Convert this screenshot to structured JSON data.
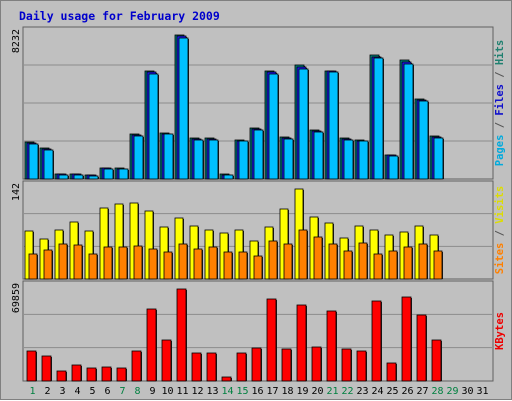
{
  "title": "Daily usage for February 2009",
  "chart_data": [
    {
      "type": "bar",
      "panel": "pages-files-hits",
      "max_label": "8232",
      "axis_label": {
        "parts": [
          "Pages",
          " / ",
          "Files",
          " / ",
          "Hits"
        ],
        "colors": [
          "#00aadd",
          "#555555",
          "#1010cc",
          "#555555",
          "#208070"
        ]
      },
      "ylim": [
        0,
        8232
      ],
      "categories": [
        "1",
        "2",
        "3",
        "4",
        "5",
        "6",
        "7",
        "8",
        "9",
        "10",
        "11",
        "12",
        "13",
        "14",
        "15",
        "16",
        "17",
        "18",
        "19",
        "20",
        "21",
        "22",
        "23",
        "24",
        "25",
        "26",
        "27",
        "28",
        "29",
        "30",
        "31"
      ],
      "series": [
        {
          "name": "Hits",
          "color": "#008080",
          "values": [
            2100,
            1750,
            280,
            280,
            230,
            650,
            620,
            2550,
            6200,
            2650,
            8232,
            2350,
            2350,
            270,
            2250,
            2900,
            6200,
            2400,
            6500,
            2800,
            6200,
            2350,
            2250,
            7100,
            1400,
            6800,
            4600,
            2450,
            null,
            null,
            null
          ]
        },
        {
          "name": "Files",
          "color": "#1a1aff",
          "values": [
            2050,
            1700,
            260,
            260,
            210,
            630,
            600,
            2500,
            6100,
            2600,
            8150,
            2300,
            2300,
            250,
            2200,
            2850,
            6100,
            2350,
            6400,
            2750,
            6150,
            2300,
            2200,
            7000,
            1350,
            6700,
            4500,
            2400,
            null,
            null,
            null
          ]
        },
        {
          "name": "Pages",
          "color": "#00c0ff",
          "values": [
            2000,
            1650,
            240,
            240,
            190,
            600,
            580,
            2450,
            6000,
            2550,
            8050,
            2250,
            2250,
            230,
            2150,
            2800,
            6000,
            2300,
            6300,
            2700,
            6100,
            2250,
            2150,
            6900,
            1300,
            6600,
            4450,
            2350,
            null,
            null,
            null
          ]
        }
      ]
    },
    {
      "type": "bar",
      "panel": "visits-sites",
      "max_label": "142",
      "axis_label": {
        "parts": [
          "Sites",
          " / ",
          "Visits"
        ],
        "colors": [
          "#ff8000",
          "#555555",
          "#dddd00"
        ]
      },
      "ylim": [
        0,
        142
      ],
      "categories": [
        "1",
        "2",
        "3",
        "4",
        "5",
        "6",
        "7",
        "8",
        "9",
        "10",
        "11",
        "12",
        "13",
        "14",
        "15",
        "16",
        "17",
        "18",
        "19",
        "20",
        "21",
        "22",
        "23",
        "24",
        "25",
        "26",
        "27",
        "28",
        "29",
        "30",
        "31"
      ],
      "series": [
        {
          "name": "Visits",
          "color": "#ffff00",
          "values": [
            75,
            63,
            77,
            90,
            76,
            112,
            118,
            120,
            108,
            82,
            96,
            84,
            77,
            72,
            77,
            60,
            82,
            110,
            142,
            98,
            88,
            64,
            83,
            78,
            70,
            74,
            84,
            70,
            null,
            null,
            null
          ]
        },
        {
          "name": "Sites",
          "color": "#ff8000",
          "values": [
            40,
            45,
            55,
            53,
            40,
            50,
            50,
            52,
            48,
            42,
            55,
            48,
            50,
            42,
            42,
            36,
            60,
            55,
            78,
            66,
            56,
            44,
            57,
            40,
            44,
            50,
            56,
            44,
            null,
            null,
            null
          ]
        }
      ]
    },
    {
      "type": "bar",
      "panel": "kbytes",
      "max_label": "69859",
      "axis_label": {
        "parts": [
          "KBytes"
        ],
        "colors": [
          "#ee0000"
        ]
      },
      "ylim": [
        0,
        69859
      ],
      "categories": [
        "1",
        "2",
        "3",
        "4",
        "5",
        "6",
        "7",
        "8",
        "9",
        "10",
        "11",
        "12",
        "13",
        "14",
        "15",
        "16",
        "17",
        "18",
        "19",
        "20",
        "21",
        "22",
        "23",
        "24",
        "25",
        "26",
        "27",
        "28",
        "29",
        "30",
        "31"
      ],
      "series": [
        {
          "name": "KBytes",
          "color": "#ff0000",
          "values": [
            23000,
            19000,
            7600,
            12000,
            10000,
            10500,
            10000,
            23000,
            55000,
            31000,
            69859,
            21500,
            21500,
            3000,
            21000,
            25000,
            62000,
            24000,
            58000,
            26000,
            53500,
            24500,
            22500,
            61000,
            13500,
            64000,
            50000,
            31000,
            null,
            null,
            null
          ]
        }
      ]
    }
  ],
  "x_labels": {
    "days": [
      "1",
      "2",
      "3",
      "4",
      "5",
      "6",
      "7",
      "8",
      "9",
      "10",
      "11",
      "12",
      "13",
      "14",
      "15",
      "16",
      "17",
      "18",
      "19",
      "20",
      "21",
      "22",
      "23",
      "24",
      "25",
      "26",
      "27",
      "28",
      "29",
      "30",
      "31"
    ],
    "weekend_color": "#008040",
    "weekday_color": "#000000",
    "weekend_days": [
      "1",
      "7",
      "8",
      "14",
      "15",
      "21",
      "22",
      "28",
      "29"
    ]
  }
}
